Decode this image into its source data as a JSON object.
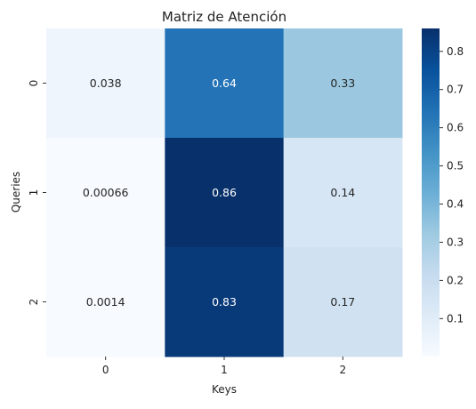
{
  "chart_data": {
    "type": "heatmap",
    "title": "Matriz de Atención",
    "xlabel": "Keys",
    "ylabel": "Queries",
    "x_categories": [
      "0",
      "1",
      "2"
    ],
    "y_categories": [
      "0",
      "1",
      "2"
    ],
    "values": [
      [
        0.038,
        0.64,
        0.33
      ],
      [
        0.00066,
        0.86,
        0.14
      ],
      [
        0.0014,
        0.83,
        0.17
      ]
    ],
    "annotations": [
      [
        "0.038",
        "0.64",
        "0.33"
      ],
      [
        "0.00066",
        "0.86",
        "0.14"
      ],
      [
        "0.0014",
        "0.83",
        "0.17"
      ]
    ],
    "colormap": "Blues",
    "colorbar": {
      "range": [
        0.00066,
        0.86
      ],
      "ticks": [
        0.1,
        0.2,
        0.3,
        0.4,
        0.5,
        0.6,
        0.7,
        0.8
      ],
      "tick_labels": [
        "0.1",
        "0.2",
        "0.3",
        "0.4",
        "0.5",
        "0.6",
        "0.7",
        "0.8"
      ]
    },
    "grid": false
  }
}
